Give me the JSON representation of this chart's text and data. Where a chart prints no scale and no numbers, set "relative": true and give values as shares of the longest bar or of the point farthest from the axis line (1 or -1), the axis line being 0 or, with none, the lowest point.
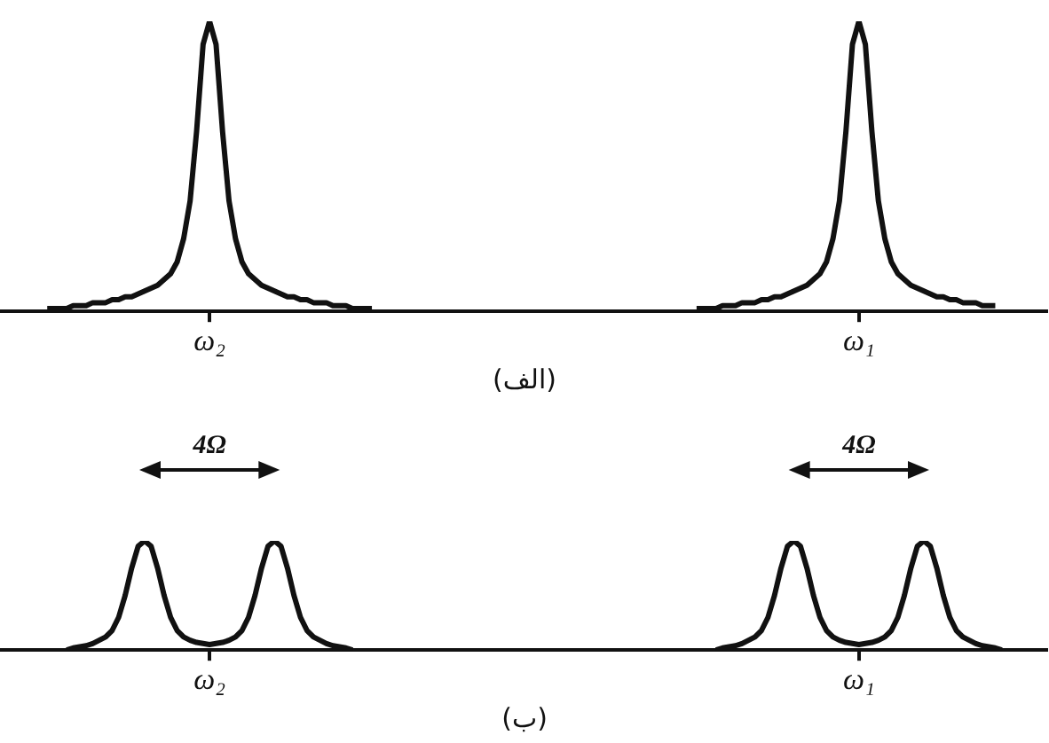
{
  "chart_data": [
    {
      "type": "line",
      "relative": true,
      "xlabel": "(الف)",
      "color": "#111111",
      "marker": "none",
      "grid": false,
      "legend": false,
      "tick_labels": "x",
      "categories": [
        null,
        null,
        null,
        null,
        null,
        null,
        null,
        null,
        null,
        null,
        null,
        null,
        null,
        null,
        null,
        null,
        null,
        null,
        null,
        null,
        null,
        null,
        null,
        null,
        null,
        null,
        null,
        null,
        null,
        null,
        null,
        null,
        "ω₂",
        null,
        null,
        null,
        null,
        null,
        null,
        null,
        null,
        null,
        null,
        null,
        null,
        null,
        null,
        null,
        null,
        null,
        null,
        null,
        null,
        null,
        null,
        null,
        null,
        null,
        null,
        null,
        null,
        null,
        null,
        null,
        null,
        null,
        null,
        null,
        null,
        null,
        null,
        null,
        null,
        null,
        null,
        null,
        null,
        null,
        null,
        null,
        null,
        null,
        null,
        null,
        null,
        null,
        null,
        null,
        null,
        null,
        null,
        null,
        null,
        null,
        null,
        null,
        null,
        null,
        null,
        null,
        null,
        null,
        null,
        null,
        null,
        null,
        null,
        null,
        null,
        null,
        null,
        null,
        null,
        null,
        null,
        null,
        null,
        null,
        null,
        null,
        null,
        null,
        null,
        null,
        null,
        null,
        null,
        null,
        null,
        null,
        null,
        null,
        "ω₁",
        null,
        null,
        null,
        null,
        null,
        null,
        null,
        null,
        null,
        null,
        null,
        null,
        null,
        null,
        null,
        null,
        null,
        null,
        null,
        null,
        null,
        null,
        null,
        null,
        null,
        null,
        null,
        null,
        null
      ],
      "values": [
        null,
        null,
        null,
        null,
        null,
        null,
        null,
        0.01,
        0.01,
        0.01,
        0.01,
        0.02,
        0.02,
        0.02,
        0.03,
        0.03,
        0.03,
        0.04,
        0.04,
        0.05,
        0.05,
        0.06,
        0.07,
        0.08,
        0.09,
        0.11,
        0.13,
        0.17,
        0.25,
        0.38,
        0.62,
        0.92,
        1,
        0.92,
        0.62,
        0.38,
        0.25,
        0.17,
        0.13,
        0.11,
        0.09,
        0.08,
        0.07,
        0.06,
        0.05,
        0.05,
        0.04,
        0.04,
        0.03,
        0.03,
        0.03,
        0.02,
        0.02,
        0.02,
        0.01,
        0.01,
        0.01,
        0.01,
        null,
        null,
        null,
        null,
        null,
        null,
        null,
        null,
        null,
        null,
        null,
        null,
        null,
        null,
        null,
        null,
        null,
        null,
        null,
        null,
        null,
        null,
        null,
        null,
        null,
        null,
        null,
        null,
        null,
        null,
        null,
        null,
        null,
        null,
        null,
        null,
        null,
        null,
        null,
        null,
        null,
        null,
        null,
        null,
        null,
        null,
        null,
        null,
        null,
        0.01,
        0.01,
        0.01,
        0.01,
        0.02,
        0.02,
        0.02,
        0.03,
        0.03,
        0.03,
        0.04,
        0.04,
        0.05,
        0.05,
        0.06,
        0.07,
        0.08,
        0.09,
        0.11,
        0.13,
        0.17,
        0.25,
        0.38,
        0.62,
        0.92,
        1,
        0.92,
        0.62,
        0.38,
        0.25,
        0.17,
        0.13,
        0.11,
        0.09,
        0.08,
        0.07,
        0.06,
        0.05,
        0.05,
        0.04,
        0.04,
        0.03,
        0.03,
        0.03,
        0.02,
        0.02,
        0.02,
        null,
        null,
        null,
        null,
        null,
        null,
        null,
        null
      ]
    },
    {
      "type": "line",
      "relative": true,
      "xlabel": "(ب)",
      "color": "#111111",
      "marker": "none",
      "grid": false,
      "legend": false,
      "tick_labels": "x",
      "annotations": [
        "4Ω",
        "4Ω"
      ],
      "categories": [
        null,
        null,
        null,
        null,
        null,
        null,
        null,
        null,
        null,
        null,
        null,
        null,
        null,
        null,
        null,
        null,
        null,
        null,
        null,
        null,
        null,
        null,
        null,
        null,
        null,
        null,
        null,
        null,
        null,
        null,
        null,
        null,
        "ω₂",
        null,
        null,
        null,
        null,
        null,
        null,
        null,
        null,
        null,
        null,
        null,
        null,
        null,
        null,
        null,
        null,
        null,
        null,
        null,
        null,
        null,
        null,
        null,
        null,
        null,
        null,
        null,
        null,
        null,
        null,
        null,
        null,
        null,
        null,
        null,
        null,
        null,
        null,
        null,
        null,
        null,
        null,
        null,
        null,
        null,
        null,
        null,
        null,
        null,
        null,
        null,
        null,
        null,
        null,
        null,
        null,
        null,
        null,
        null,
        null,
        null,
        null,
        null,
        null,
        null,
        null,
        null,
        null,
        null,
        null,
        null,
        null,
        null,
        null,
        null,
        null,
        null,
        null,
        null,
        null,
        null,
        null,
        null,
        null,
        null,
        null,
        null,
        null,
        null,
        null,
        null,
        null,
        null,
        null,
        null,
        null,
        null,
        null,
        null,
        "ω₁",
        null,
        null,
        null,
        null,
        null,
        null,
        null,
        null,
        null,
        null,
        null,
        null,
        null,
        null,
        null,
        null,
        null,
        null,
        null,
        null,
        null,
        null,
        null,
        null,
        null,
        null,
        null,
        null,
        null
      ],
      "values": [
        null,
        null,
        null,
        null,
        null,
        null,
        null,
        null,
        null,
        null,
        0,
        0.02,
        0.03,
        0.04,
        0.06,
        0.09,
        0.12,
        0.18,
        0.3,
        0.5,
        0.75,
        0.95,
        1,
        0.95,
        0.75,
        0.5,
        0.3,
        0.18,
        0.12,
        0.09,
        0.07,
        0.06,
        0.05,
        0.06,
        0.07,
        0.09,
        0.12,
        0.18,
        0.3,
        0.5,
        0.75,
        0.95,
        1,
        0.95,
        0.75,
        0.5,
        0.3,
        0.18,
        0.12,
        0.09,
        0.06,
        0.04,
        0.03,
        0.02,
        0,
        null,
        null,
        null,
        null,
        null,
        null,
        null,
        null,
        null,
        null,
        null,
        null,
        null,
        null,
        null,
        null,
        null,
        null,
        null,
        null,
        null,
        null,
        null,
        null,
        null,
        null,
        null,
        null,
        null,
        null,
        null,
        null,
        null,
        null,
        null,
        null,
        null,
        null,
        null,
        null,
        null,
        null,
        null,
        null,
        null,
        null,
        null,
        null,
        null,
        null,
        null,
        null,
        null,
        null,
        null,
        0,
        0.02,
        0.03,
        0.04,
        0.06,
        0.09,
        0.12,
        0.18,
        0.3,
        0.5,
        0.75,
        0.95,
        1,
        0.95,
        0.75,
        0.5,
        0.3,
        0.18,
        0.12,
        0.09,
        0.07,
        0.06,
        0.05,
        0.06,
        0.07,
        0.09,
        0.12,
        0.18,
        0.3,
        0.5,
        0.75,
        0.95,
        1,
        0.95,
        0.75,
        0.5,
        0.3,
        0.18,
        0.12,
        0.09,
        0.06,
        0.04,
        0.03,
        0.02,
        0,
        null,
        null,
        null,
        null,
        null,
        null,
        null
      ]
    }
  ]
}
